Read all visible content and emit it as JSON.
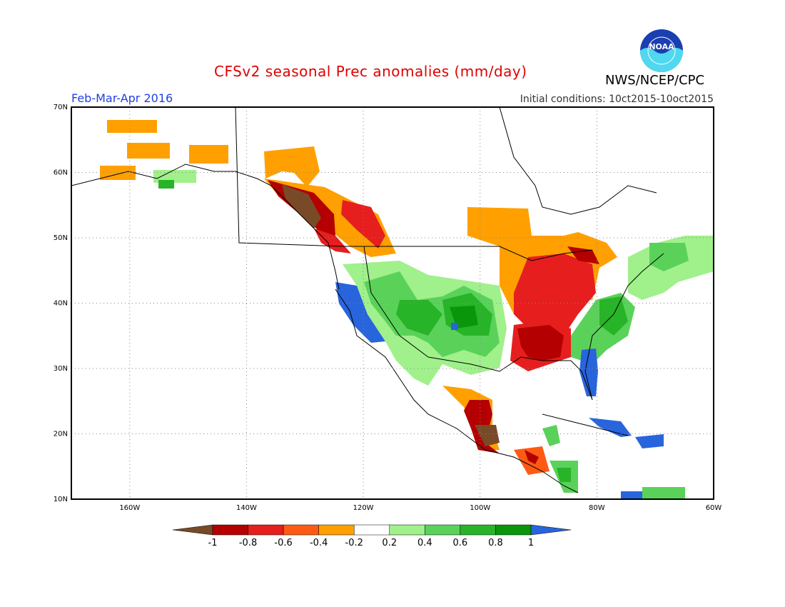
{
  "header": {
    "title": "CFSv2 seasonal Prec anomalies (mm/day)",
    "org": "NWS/NCEP/CPC",
    "period": "Feb-Mar-Apr 2016",
    "initial_conditions": "Initial conditions: 10ct2015-10oct2015",
    "logo_text": "NOAA"
  },
  "map": {
    "projection": "equirectangular",
    "lat_range": [
      10,
      70
    ],
    "lon_range": [
      -170,
      -60
    ],
    "lat_labels": [
      "70N",
      "60N",
      "50N",
      "40N",
      "30N",
      "20N",
      "10N"
    ],
    "lon_labels": [
      "160W",
      "140W",
      "120W",
      "100W",
      "80W",
      "60W"
    ],
    "grid": "dotted"
  },
  "colorbar": {
    "ticks": [
      "-1",
      "-0.8",
      "-0.6",
      "-0.4",
      "-0.2",
      "0.2",
      "0.4",
      "0.6",
      "0.8",
      "1"
    ],
    "colors": [
      "#784a28",
      "#b40000",
      "#e61e1e",
      "#ff5a14",
      "#ffa000",
      "#ffffff",
      "#a0f08c",
      "#5ad25a",
      "#28b428",
      "#0a960a",
      "#2864dc"
    ]
  },
  "anomaly_regions": [
    {
      "name": "Pacific NW coast / BC",
      "level": "-1 to -0.6"
    },
    {
      "name": "Ohio & Tennessee Valley",
      "level": "-0.8 to -0.4"
    },
    {
      "name": "Upper Midwest / Great Lakes",
      "level": "-0.4 to -0.2"
    },
    {
      "name": "Southern Mexico",
      "level": "-1 to -0.6"
    },
    {
      "name": "California coast",
      "level": ">1"
    },
    {
      "name": "Southern Plains / Southwest",
      "level": "0.2 to 0.8"
    },
    {
      "name": "Florida",
      "level": ">1"
    },
    {
      "name": "Caribbean / Cuba",
      "level": ">1"
    },
    {
      "name": "Southeast US coast",
      "level": "0.4 to 0.8"
    },
    {
      "name": "Northeast US / Maritimes",
      "level": "0.2 to 0.6"
    }
  ]
}
